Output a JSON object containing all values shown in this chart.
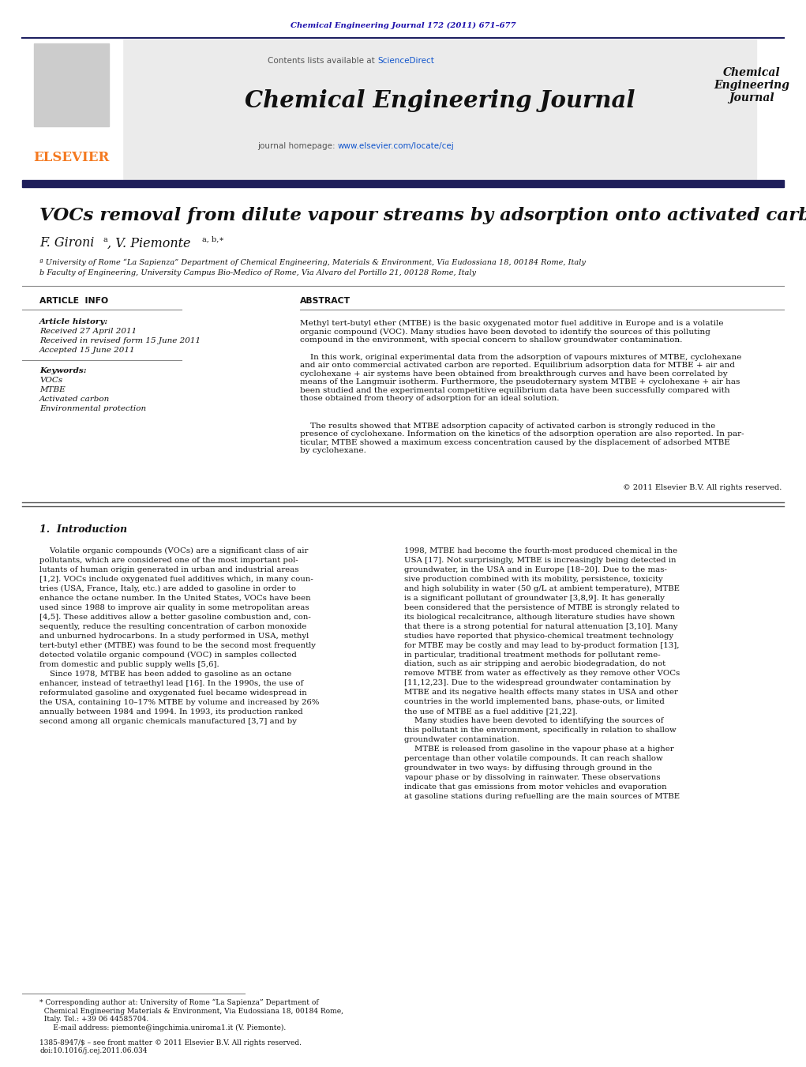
{
  "journal_ref": "Chemical Engineering Journal 172 (2011) 671–677",
  "journal_ref_color": "#1a0dab",
  "sciencedirect_link": "ScienceDirect",
  "sciencedirect_color": "#1155cc",
  "journal_name": "Chemical Engineering Journal",
  "journal_homepage_link": "www.elsevier.com/locate/cej",
  "journal_homepage_color": "#1155cc",
  "journal_short_name": "Chemical\nEngineering\nJournal",
  "paper_title": "VOCs removal from dilute vapour streams by adsorption onto activated carbon",
  "affil_a": "ª University of Rome “La Sapienza” Department of Chemical Engineering, Materials & Environment, Via Eudossiana 18, 00184 Rome, Italy",
  "affil_b": "b Faculty of Engineering, University Campus Bio-Medico of Rome, Via Alvaro del Portillo 21, 00128 Rome, Italy",
  "received": "Received 27 April 2011",
  "revised": "Received in revised form 15 June 2011",
  "accepted": "Accepted 15 June 2011",
  "keywords": [
    "VOCs",
    "MTBE",
    "Activated carbon",
    "Environmental protection"
  ],
  "abstract_p1": "Methyl tert-butyl ether (MTBE) is the basic oxygenated motor fuel additive in Europe and is a volatile\norganic compound (VOC). Many studies have been devoted to identify the sources of this polluting\ncompound in the environment, with special concern to shallow groundwater contamination.",
  "abstract_p2": "    In this work, original experimental data from the adsorption of vapours mixtures of MTBE, cyclohexane\nand air onto commercial activated carbon are reported. Equilibrium adsorption data for MTBE + air and\ncyclohexane + air systems have been obtained from breakthrough curves and have been correlated by\nmeans of the Langmuir isotherm. Furthermore, the pseudoternary system MTBE + cyclohexane + air has\nbeen studied and the experimental competitive equilibrium data have been successfully compared with\nthose obtained from theory of adsorption for an ideal solution.",
  "abstract_p3": "    The results showed that MTBE adsorption capacity of activated carbon is strongly reduced in the\npresence of cyclohexane. Information on the kinetics of the adsorption operation are also reported. In par-\nticular, MTBE showed a maximum excess concentration caused by the displacement of adsorbed MTBE\nby cyclohexane.",
  "copyright": "© 2011 Elsevier B.V. All rights reserved.",
  "intro_header": "1.  Introduction",
  "intro_left": "    Volatile organic compounds (VOCs) are a significant class of air\npollutants, which are considered one of the most important pol-\nlutants of human origin generated in urban and industrial areas\n[1,2]. VOCs include oxygenated fuel additives which, in many coun-\ntries (USA, France, Italy, etc.) are added to gasoline in order to\nenhance the octane number. In the United States, VOCs have been\nused since 1988 to improve air quality in some metropolitan areas\n[4,5]. These additives allow a better gasoline combustion and, con-\nsequently, reduce the resulting concentration of carbon monoxide\nand unburned hydrocarbons. In a study performed in USA, methyl\ntert-butyl ether (MTBE) was found to be the second most frequently\ndetected volatile organic compound (VOC) in samples collected\nfrom domestic and public supply wells [5,6].\n    Since 1978, MTBE has been added to gasoline as an octane\nenhancer, instead of tetraethyl lead [16]. In the 1990s, the use of\nreformulated gasoline and oxygenated fuel became widespread in\nthe USA, containing 10–17% MTBE by volume and increased by 26%\nannually between 1984 and 1994. In 1993, its production ranked\nsecond among all organic chemicals manufactured [3,7] and by",
  "intro_right": "1998, MTBE had become the fourth-most produced chemical in the\nUSA [17]. Not surprisingly, MTBE is increasingly being detected in\ngroundwater, in the USA and in Europe [18–20]. Due to the mas-\nsive production combined with its mobility, persistence, toxicity\nand high solubility in water (50 g/L at ambient temperature), MTBE\nis a significant pollutant of groundwater [3,8,9]. It has generally\nbeen considered that the persistence of MTBE is strongly related to\nits biological recalcitrance, although literature studies have shown\nthat there is a strong potential for natural attenuation [3,10]. Many\nstudies have reported that physico-chemical treatment technology\nfor MTBE may be costly and may lead to by-product formation [13],\nin particular, traditional treatment methods for pollutant reme-\ndiation, such as air stripping and aerobic biodegradation, do not\nremove MTBE from water as effectively as they remove other VOCs\n[11,12,23]. Due to the widespread groundwater contamination by\nMTBE and its negative health effects many states in USA and other\ncountries in the world implemented bans, phase-outs, or limited\nthe use of MTBE as a fuel additive [21,22].\n    Many studies have been devoted to identifying the sources of\nthis pollutant in the environment, specifically in relation to shallow\ngroundwater contamination.\n    MTBE is released from gasoline in the vapour phase at a higher\npercentage than other volatile compounds. It can reach shallow\ngroundwater in two ways: by diffusing through ground in the\nvapour phase or by dissolving in rainwater. These observations\nindicate that gas emissions from motor vehicles and evaporation\nat gasoline stations during refuelling are the main sources of MTBE",
  "footnote1": "* Corresponding author at: University of Rome “La Sapienza” Department of\n  Chemical Engineering Materials & Environment, Via Eudossiana 18, 00184 Rome,\n  Italy. Tel.: +39 06 44585704.\n      E-mail address: piemonte@ingchimia.uniroma1.it (V. Piemonte).",
  "footnote2": "1385-8947/$ – see front matter © 2011 Elsevier B.V. All rights reserved.\ndoi:10.1016/j.cej.2011.06.034",
  "bg_color": "#ffffff",
  "gray_header_bg": "#ebebeb",
  "dark_bar_color": "#1e1e5a",
  "elsevier_orange": "#f47920",
  "link_color": "#1155cc",
  "text_color": "#111111"
}
